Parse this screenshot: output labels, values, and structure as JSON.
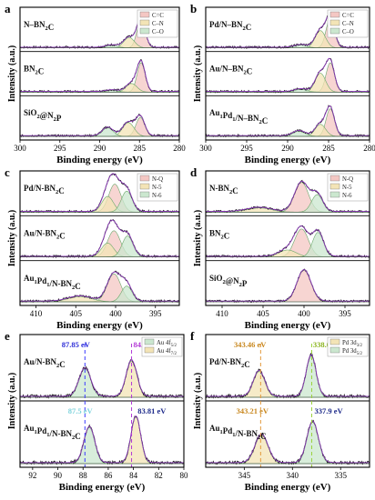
{
  "panels": [
    {
      "id": "a",
      "type": "line",
      "xlabel": "Binding energy (eV)",
      "ylabel": "Intensity (a.u.)",
      "xlim": [
        300,
        280
      ],
      "xticks": [
        300,
        295,
        290,
        285,
        280
      ],
      "legend": [
        {
          "label": "C=C",
          "color": "#f4c7c3"
        },
        {
          "label": "C–N",
          "color": "#f3e4b6"
        },
        {
          "label": "C–O",
          "color": "#cbe7cf"
        }
      ],
      "spectra": [
        {
          "label": "N–BN2C",
          "peaks": [
            {
              "center": 284.8,
              "height": 0.85,
              "fwhm": 1.2,
              "color": "#f4c7c3"
            },
            {
              "center": 286.3,
              "height": 0.3,
              "fwhm": 1.6,
              "color": "#f3e4b6"
            },
            {
              "center": 288.5,
              "height": 0.07,
              "fwhm": 1.8,
              "color": "#cbe7cf"
            }
          ]
        },
        {
          "label": "BN2C",
          "peaks": [
            {
              "center": 284.8,
              "height": 0.85,
              "fwhm": 1.2,
              "color": "#f4c7c3"
            },
            {
              "center": 286.0,
              "height": 0.25,
              "fwhm": 1.6,
              "color": "#f3e4b6"
            },
            {
              "center": 288.5,
              "height": 0.05,
              "fwhm": 1.8,
              "color": "#cbe7cf"
            }
          ]
        },
        {
          "label": "SiO2@N2P",
          "peaks": [
            {
              "center": 284.9,
              "height": 0.55,
              "fwhm": 1.3,
              "color": "#f4c7c3"
            },
            {
              "center": 286.4,
              "height": 0.4,
              "fwhm": 1.7,
              "color": "#f3e4b6"
            },
            {
              "center": 289.0,
              "height": 0.25,
              "fwhm": 1.6,
              "color": "#cbe7cf"
            }
          ]
        }
      ]
    },
    {
      "id": "b",
      "type": "line",
      "xlabel": "Binding energy (eV)",
      "ylabel": "Intensity (a.u.)",
      "xlim": [
        300,
        280
      ],
      "xticks": [
        300,
        295,
        290,
        285,
        280
      ],
      "legend": [
        {
          "label": "C=C",
          "color": "#f4c7c3"
        },
        {
          "label": "C–N",
          "color": "#f3e4b6"
        },
        {
          "label": "C–O",
          "color": "#cbe7cf"
        }
      ],
      "spectra": [
        {
          "label": "Pd/N–BN2C",
          "peaks": [
            {
              "center": 284.8,
              "height": 0.85,
              "fwhm": 1.2,
              "color": "#f4c7c3"
            },
            {
              "center": 286.0,
              "height": 0.5,
              "fwhm": 1.5,
              "color": "#f3e4b6"
            },
            {
              "center": 288.4,
              "height": 0.08,
              "fwhm": 1.8,
              "color": "#cbe7cf"
            }
          ]
        },
        {
          "label": "Au/N–BN2C",
          "peaks": [
            {
              "center": 284.8,
              "height": 0.85,
              "fwhm": 1.2,
              "color": "#f4c7c3"
            },
            {
              "center": 286.0,
              "height": 0.55,
              "fwhm": 1.5,
              "color": "#f3e4b6"
            },
            {
              "center": 288.4,
              "height": 0.08,
              "fwhm": 1.8,
              "color": "#cbe7cf"
            }
          ]
        },
        {
          "label": "Au1Pd1/N–BN2C",
          "peaks": [
            {
              "center": 284.8,
              "height": 0.8,
              "fwhm": 1.2,
              "color": "#f4c7c3"
            },
            {
              "center": 286.0,
              "height": 0.35,
              "fwhm": 1.5,
              "color": "#f3e4b6"
            },
            {
              "center": 288.6,
              "height": 0.15,
              "fwhm": 1.8,
              "color": "#cbe7cf"
            }
          ]
        }
      ]
    },
    {
      "id": "c",
      "type": "line",
      "xlabel": "Binding energy (eV)",
      "ylabel": "Intensity (a.u.)",
      "xlim": [
        412,
        392
      ],
      "xticks": [
        410,
        405,
        400,
        395
      ],
      "legend": [
        {
          "label": "N-Q",
          "color": "#f4c7c3"
        },
        {
          "label": "N-5",
          "color": "#f3e4b6"
        },
        {
          "label": "N-6",
          "color": "#cbe7cf"
        }
      ],
      "spectra": [
        {
          "label": "Pd/N-BN2C",
          "peaks": [
            {
              "center": 400.1,
              "height": 0.8,
              "fwhm": 1.8,
              "color": "#f4c7c3"
            },
            {
              "center": 401.0,
              "height": 0.45,
              "fwhm": 1.7,
              "color": "#f3e4b6"
            },
            {
              "center": 398.6,
              "height": 0.6,
              "fwhm": 1.6,
              "color": "#cbe7cf"
            }
          ]
        },
        {
          "label": "Au/N-BN2C",
          "peaks": [
            {
              "center": 400.2,
              "height": 0.75,
              "fwhm": 1.9,
              "color": "#f4c7c3"
            },
            {
              "center": 401.0,
              "height": 0.4,
              "fwhm": 1.8,
              "color": "#f3e4b6"
            },
            {
              "center": 398.5,
              "height": 0.6,
              "fwhm": 1.6,
              "color": "#cbe7cf"
            }
          ]
        },
        {
          "label": "Au1Pd1/N-BN2C",
          "peaks": [
            {
              "center": 400.2,
              "height": 0.8,
              "fwhm": 2.0,
              "color": "#f4c7c3"
            },
            {
              "center": 404.5,
              "height": 0.15,
              "fwhm": 3.5,
              "color": "#f3e4b6"
            },
            {
              "center": 398.6,
              "height": 0.45,
              "fwhm": 1.6,
              "color": "#cbe7cf"
            }
          ]
        }
      ]
    },
    {
      "id": "d",
      "type": "line",
      "xlabel": "Binding energy (eV)",
      "ylabel": "Intensity (a.u.)",
      "xlim": [
        412,
        392
      ],
      "xticks": [
        410,
        405,
        400,
        395
      ],
      "legend": [
        {
          "label": "N-Q",
          "color": "#f4c7c3"
        },
        {
          "label": "N-5",
          "color": "#f3e4b6"
        },
        {
          "label": "N-6",
          "color": "#cbe7cf"
        }
      ],
      "spectra": [
        {
          "label": "N-BN2C",
          "peaks": [
            {
              "center": 400.3,
              "height": 0.85,
              "fwhm": 2.0,
              "color": "#f4c7c3"
            },
            {
              "center": 405.5,
              "height": 0.12,
              "fwhm": 3.5,
              "color": "#f3e4b6"
            },
            {
              "center": 398.4,
              "height": 0.5,
              "fwhm": 1.6,
              "color": "#cbe7cf"
            }
          ]
        },
        {
          "label": "BN2C",
          "peaks": [
            {
              "center": 400.3,
              "height": 0.8,
              "fwhm": 2.0,
              "color": "#f4c7c3"
            },
            {
              "center": 402.0,
              "height": 0.2,
              "fwhm": 2.5,
              "color": "#f3e4b6"
            },
            {
              "center": 398.3,
              "height": 0.7,
              "fwhm": 1.6,
              "color": "#cbe7cf"
            }
          ]
        },
        {
          "label": "SiO2@N2P",
          "peaks": [
            {
              "center": 400.0,
              "height": 0.9,
              "fwhm": 2.0,
              "color": "#f4c7c3"
            }
          ]
        }
      ]
    },
    {
      "id": "e",
      "type": "line",
      "xlabel": "Binding energy (eV)",
      "ylabel": "Intensity (a.u.)",
      "xlim": [
        93,
        80
      ],
      "xticks": [
        92,
        90,
        88,
        86,
        84,
        82,
        80
      ],
      "legend": [
        {
          "label": "Au 4f5/2",
          "color": "#cbe7cf"
        },
        {
          "label": "Au 4f7/2",
          "color": "#f3e4b6"
        }
      ],
      "annotations": [
        {
          "text": "87.85 eV",
          "x": 87.85,
          "color": "#2b2bd6"
        },
        {
          "text": "84.15 eV",
          "x": 84.15,
          "color": "#b23ad6"
        },
        {
          "text": "87.5 eV",
          "x": 87.5,
          "color": "#7fd3dd"
        },
        {
          "text": "83.81 eV",
          "x": 83.81,
          "color": "#1d2a8a"
        }
      ],
      "dashed_lines": [
        {
          "x": 87.85,
          "color": "#3b3bff"
        },
        {
          "x": 84.15,
          "color": "#b23ad6"
        }
      ],
      "spectra": [
        {
          "label": "Au/N-BN2C",
          "peaks": [
            {
              "center": 87.85,
              "height": 0.55,
              "fwhm": 1.1,
              "color": "#cbe7cf"
            },
            {
              "center": 84.15,
              "height": 0.7,
              "fwhm": 1.0,
              "color": "#f3e4b6"
            }
          ]
        },
        {
          "label": "Au1Pd1/N-BN2C",
          "peaks": [
            {
              "center": 87.5,
              "height": 0.7,
              "fwhm": 1.0,
              "color": "#cbe7cf"
            },
            {
              "center": 83.81,
              "height": 0.9,
              "fwhm": 0.9,
              "color": "#f3e4b6"
            }
          ]
        }
      ]
    },
    {
      "id": "f",
      "type": "line",
      "xlabel": "Binding energy (eV)",
      "ylabel": "Intensity (a.u.)",
      "xlim": [
        349,
        332
      ],
      "xticks": [
        345,
        340,
        335
      ],
      "legend": [
        {
          "label": "Pd 3d3/2",
          "color": "#f3e4b6"
        },
        {
          "label": "Pd 3d5/2",
          "color": "#cbe7cf"
        }
      ],
      "annotations": [
        {
          "text": "343.46 eV",
          "x": 343.46,
          "color": "#c8871e"
        },
        {
          "text": "338.06 eV",
          "x": 338.06,
          "color": "#8ab31e"
        },
        {
          "text": "343.21 eV",
          "x": 343.21,
          "color": "#c8871e"
        },
        {
          "text": "337.9 eV",
          "x": 337.9,
          "color": "#1d2a8a"
        }
      ],
      "dashed_lines": [
        {
          "x": 343.3,
          "color": "#e39a3b"
        },
        {
          "x": 338.0,
          "color": "#9bd13b"
        }
      ],
      "spectra": [
        {
          "label": "Pd/N-BN2C",
          "peaks": [
            {
              "center": 343.46,
              "height": 0.5,
              "fwhm": 1.4,
              "color": "#f3e4b6"
            },
            {
              "center": 338.06,
              "height": 0.8,
              "fwhm": 1.2,
              "color": "#cbe7cf"
            }
          ]
        },
        {
          "label": "Au1Pd1/N-BN2C",
          "peaks": [
            {
              "center": 343.21,
              "height": 0.55,
              "fwhm": 1.6,
              "color": "#f3e4b6"
            },
            {
              "center": 337.9,
              "height": 0.8,
              "fwhm": 1.4,
              "color": "#cbe7cf"
            }
          ]
        }
      ]
    }
  ],
  "chart_data": [
    {
      "type": "line",
      "panel": "a",
      "xlabel": "Binding energy (eV)",
      "ylabel": "Intensity (a.u.)",
      "xlim": [
        300,
        280
      ],
      "series": [
        {
          "name": "N–BN2C"
        },
        {
          "name": "BN2C"
        },
        {
          "name": "SiO2@N2P"
        }
      ],
      "legend": [
        "C=C",
        "C–N",
        "C–O"
      ]
    },
    {
      "type": "line",
      "panel": "b",
      "xlabel": "Binding energy (eV)",
      "ylabel": "Intensity (a.u.)",
      "xlim": [
        300,
        280
      ],
      "series": [
        {
          "name": "Pd/N–BN2C"
        },
        {
          "name": "Au/N–BN2C"
        },
        {
          "name": "Au1Pd1/N–BN2C"
        }
      ],
      "legend": [
        "C=C",
        "C–N",
        "C–O"
      ]
    },
    {
      "type": "line",
      "panel": "c",
      "xlabel": "Binding energy (eV)",
      "ylabel": "Intensity (a.u.)",
      "xlim": [
        412,
        392
      ],
      "series": [
        {
          "name": "Pd/N-BN2C"
        },
        {
          "name": "Au/N-BN2C"
        },
        {
          "name": "Au1Pd1/N-BN2C"
        }
      ],
      "legend": [
        "N-Q",
        "N-5",
        "N-6"
      ]
    },
    {
      "type": "line",
      "panel": "d",
      "xlabel": "Binding energy (eV)",
      "ylabel": "Intensity (a.u.)",
      "xlim": [
        412,
        392
      ],
      "series": [
        {
          "name": "N-BN2C"
        },
        {
          "name": "BN2C"
        },
        {
          "name": "SiO2@N2P"
        }
      ],
      "legend": [
        "N-Q",
        "N-5",
        "N-6"
      ]
    },
    {
      "type": "line",
      "panel": "e",
      "xlabel": "Binding energy (eV)",
      "ylabel": "Intensity (a.u.)",
      "xlim": [
        93,
        80
      ],
      "series": [
        {
          "name": "Au/N-BN2C"
        },
        {
          "name": "Au1Pd1/N-BN2C"
        }
      ],
      "legend": [
        "Au 4f5/2",
        "Au 4f7/2"
      ],
      "annotations": [
        "87.85 eV",
        "84.15 eV",
        "87.5 eV",
        "83.81 eV"
      ]
    },
    {
      "type": "line",
      "panel": "f",
      "xlabel": "Binding energy (eV)",
      "ylabel": "Intensity (a.u.)",
      "xlim": [
        349,
        332
      ],
      "series": [
        {
          "name": "Pd/N-BN2C"
        },
        {
          "name": "Au1Pd1/N-BN2C"
        }
      ],
      "legend": [
        "Pd 3d3/2",
        "Pd 3d5/2"
      ],
      "annotations": [
        "343.46 eV",
        "338.06 eV",
        "343.21 eV",
        "337.9 eV"
      ]
    }
  ]
}
